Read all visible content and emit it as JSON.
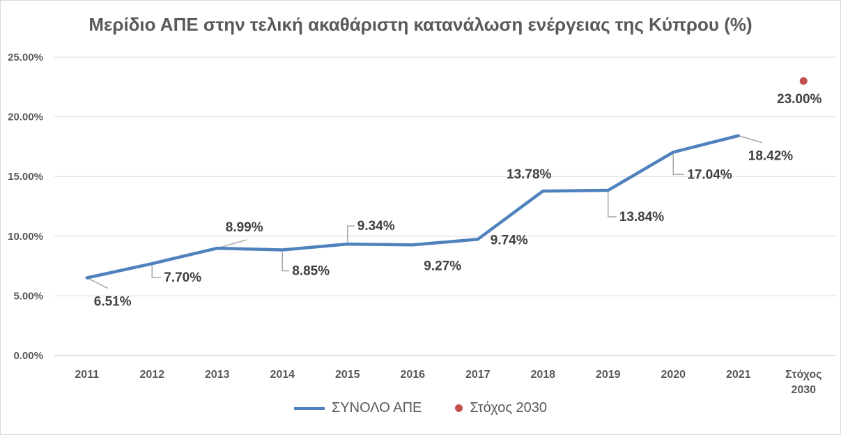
{
  "chart_data": {
    "type": "line",
    "title": "Μερίδιο ΑΠΕ στην τελική ακαθάριστη κατανάλωση ενέργειας της Κύπρου (%)",
    "categories": [
      "2011",
      "2012",
      "2013",
      "2014",
      "2015",
      "2016",
      "2017",
      "2018",
      "2019",
      "2020",
      "2021",
      "Στόχος 2030"
    ],
    "category_lines": [
      [
        "2011"
      ],
      [
        "2012"
      ],
      [
        "2013"
      ],
      [
        "2014"
      ],
      [
        "2015"
      ],
      [
        "2016"
      ],
      [
        "2017"
      ],
      [
        "2018"
      ],
      [
        "2019"
      ],
      [
        "2020"
      ],
      [
        "2021"
      ],
      [
        "Στόχος",
        "2030"
      ]
    ],
    "ylim": [
      0,
      25
    ],
    "yticks": [
      0,
      5,
      10,
      15,
      20,
      25
    ],
    "ytick_labels": [
      "0.00%",
      "5.00%",
      "10.00%",
      "15.00%",
      "20.00%",
      "25.00%"
    ],
    "grid": true,
    "legend_position": "bottom",
    "series": [
      {
        "name": "ΣΥΝΟΛΟ ΑΠΕ",
        "type": "line",
        "color": "#4f81bd",
        "values": [
          6.51,
          7.7,
          8.99,
          8.85,
          9.34,
          9.27,
          9.74,
          13.78,
          13.84,
          17.04,
          18.42,
          null
        ],
        "labels": [
          "6.51%",
          "7.70%",
          "8.99%",
          "8.85%",
          "9.34%",
          "9.27%",
          "9.74%",
          "13.78%",
          "13.84%",
          "17.04%",
          "18.42%",
          ""
        ]
      },
      {
        "name": "Στόχος 2030",
        "type": "scatter",
        "color": "#c0504d",
        "values": [
          null,
          null,
          null,
          null,
          null,
          null,
          null,
          null,
          null,
          null,
          null,
          23.0
        ],
        "labels": [
          "",
          "",
          "",
          "",
          "",
          "",
          "",
          "",
          "",
          "",
          "",
          "23.00%"
        ]
      }
    ]
  }
}
